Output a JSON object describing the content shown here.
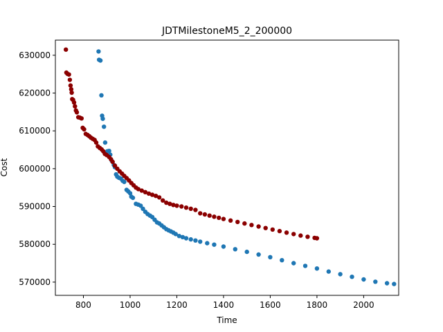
{
  "chart_data": {
    "type": "scatter",
    "title": "JDTMilestoneM5_2_200000",
    "xlabel": "Time",
    "ylabel": "Cost",
    "xlim": [
      680,
      2150
    ],
    "ylim": [
      566500,
      634000
    ],
    "xticks": [
      800,
      1000,
      1200,
      1400,
      1600,
      1800,
      2000
    ],
    "yticks": [
      570000,
      580000,
      590000,
      600000,
      610000,
      620000,
      630000
    ],
    "grid": false,
    "legend": "none",
    "series": [
      {
        "color": "#1f77b4",
        "points": [
          [
            865,
            631000
          ],
          [
            867,
            628800
          ],
          [
            873,
            628600
          ],
          [
            877,
            619400
          ],
          [
            880,
            614000
          ],
          [
            883,
            613200
          ],
          [
            888,
            611100
          ],
          [
            893,
            606900
          ],
          [
            903,
            604600
          ],
          [
            910,
            604700
          ],
          [
            915,
            603700
          ],
          [
            922,
            602000
          ],
          [
            930,
            601000
          ],
          [
            935,
            600400
          ],
          [
            940,
            598500
          ],
          [
            945,
            597900
          ],
          [
            952,
            597600
          ],
          [
            960,
            597400
          ],
          [
            968,
            596800
          ],
          [
            975,
            596500
          ],
          [
            985,
            594400
          ],
          [
            992,
            594000
          ],
          [
            1000,
            593500
          ],
          [
            1005,
            592600
          ],
          [
            1012,
            592300
          ],
          [
            1025,
            590700
          ],
          [
            1035,
            590500
          ],
          [
            1045,
            590200
          ],
          [
            1055,
            589400
          ],
          [
            1065,
            588600
          ],
          [
            1075,
            588000
          ],
          [
            1085,
            587600
          ],
          [
            1095,
            587200
          ],
          [
            1105,
            586500
          ],
          [
            1115,
            585800
          ],
          [
            1125,
            585500
          ],
          [
            1135,
            585000
          ],
          [
            1145,
            584500
          ],
          [
            1155,
            584000
          ],
          [
            1165,
            583700
          ],
          [
            1175,
            583400
          ],
          [
            1185,
            583100
          ],
          [
            1195,
            582700
          ],
          [
            1210,
            582200
          ],
          [
            1225,
            581900
          ],
          [
            1240,
            581600
          ],
          [
            1260,
            581300
          ],
          [
            1280,
            581000
          ],
          [
            1300,
            580700
          ],
          [
            1330,
            580300
          ],
          [
            1360,
            579900
          ],
          [
            1400,
            579400
          ],
          [
            1450,
            578700
          ],
          [
            1500,
            578000
          ],
          [
            1550,
            577300
          ],
          [
            1600,
            576600
          ],
          [
            1650,
            575800
          ],
          [
            1700,
            575000
          ],
          [
            1750,
            574300
          ],
          [
            1800,
            573600
          ],
          [
            1850,
            572800
          ],
          [
            1900,
            572100
          ],
          [
            1950,
            571400
          ],
          [
            2000,
            570700
          ],
          [
            2050,
            570100
          ],
          [
            2100,
            569700
          ],
          [
            2130,
            569500
          ]
        ]
      },
      {
        "color": "#8b0000",
        "points": [
          [
            725,
            631500
          ],
          [
            727,
            625400
          ],
          [
            732,
            625100
          ],
          [
            738,
            624900
          ],
          [
            742,
            623500
          ],
          [
            745,
            622000
          ],
          [
            748,
            621000
          ],
          [
            750,
            620100
          ],
          [
            752,
            618400
          ],
          [
            756,
            618200
          ],
          [
            760,
            617500
          ],
          [
            764,
            616500
          ],
          [
            768,
            615400
          ],
          [
            772,
            614900
          ],
          [
            778,
            613600
          ],
          [
            785,
            613500
          ],
          [
            792,
            613300
          ],
          [
            797,
            610800
          ],
          [
            803,
            610400
          ],
          [
            810,
            609200
          ],
          [
            818,
            608900
          ],
          [
            825,
            608600
          ],
          [
            832,
            608200
          ],
          [
            840,
            607900
          ],
          [
            848,
            607600
          ],
          [
            855,
            606900
          ],
          [
            862,
            605900
          ],
          [
            870,
            605500
          ],
          [
            878,
            605100
          ],
          [
            885,
            604600
          ],
          [
            892,
            603900
          ],
          [
            900,
            603600
          ],
          [
            910,
            603100
          ],
          [
            918,
            602500
          ],
          [
            925,
            601800
          ],
          [
            935,
            600800
          ],
          [
            945,
            600000
          ],
          [
            955,
            599300
          ],
          [
            965,
            598700
          ],
          [
            975,
            598100
          ],
          [
            985,
            597500
          ],
          [
            995,
            596900
          ],
          [
            1005,
            596200
          ],
          [
            1015,
            595600
          ],
          [
            1025,
            595000
          ],
          [
            1035,
            594600
          ],
          [
            1050,
            594200
          ],
          [
            1065,
            593800
          ],
          [
            1080,
            593400
          ],
          [
            1095,
            593100
          ],
          [
            1110,
            592800
          ],
          [
            1125,
            592400
          ],
          [
            1140,
            591600
          ],
          [
            1155,
            591000
          ],
          [
            1170,
            590700
          ],
          [
            1185,
            590400
          ],
          [
            1200,
            590200
          ],
          [
            1220,
            590000
          ],
          [
            1240,
            589700
          ],
          [
            1260,
            589400
          ],
          [
            1280,
            589100
          ],
          [
            1300,
            588200
          ],
          [
            1320,
            587900
          ],
          [
            1340,
            587600
          ],
          [
            1360,
            587300
          ],
          [
            1380,
            587000
          ],
          [
            1400,
            586700
          ],
          [
            1430,
            586300
          ],
          [
            1460,
            585900
          ],
          [
            1490,
            585500
          ],
          [
            1520,
            585100
          ],
          [
            1550,
            584700
          ],
          [
            1580,
            584300
          ],
          [
            1610,
            583900
          ],
          [
            1640,
            583500
          ],
          [
            1670,
            583100
          ],
          [
            1700,
            582700
          ],
          [
            1730,
            582300
          ],
          [
            1760,
            582000
          ],
          [
            1790,
            581700
          ],
          [
            1800,
            581600
          ]
        ]
      }
    ]
  }
}
